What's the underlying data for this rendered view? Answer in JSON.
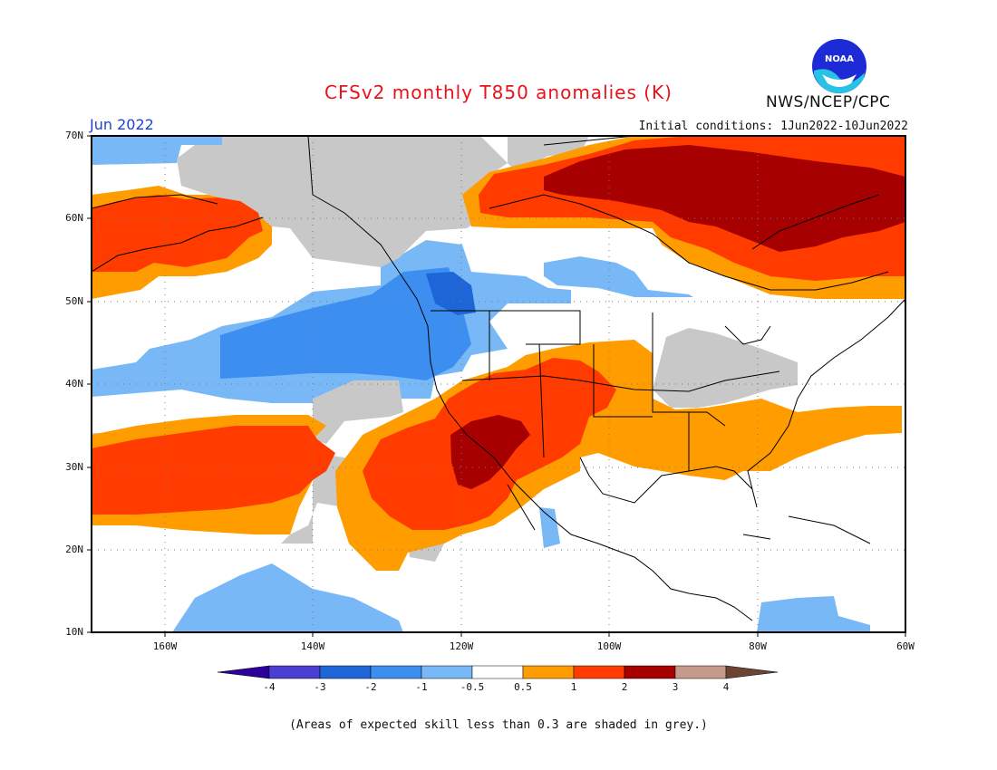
{
  "title": "CFSv2 monthly T850 anomalies (K)",
  "period_label": "Jun 2022",
  "initial_conditions": "Initial conditions: 1Jun2022-10Jun2022",
  "agency": "NWS/NCEP/CPC",
  "logo_text": "NOAA",
  "note": "(Areas of expected skill less than 0.3 are shaded in grey.)",
  "lat_labels": [
    "70N",
    "60N",
    "50N",
    "40N",
    "30N",
    "20N",
    "10N"
  ],
  "lon_labels": [
    "160W",
    "140W",
    "120W",
    "100W",
    "80W",
    "60W"
  ],
  "colorbar": {
    "labels": [
      "-4",
      "-3",
      "-2",
      "-1",
      "-0.5",
      "0.5",
      "1",
      "2",
      "3",
      "4"
    ],
    "colors": [
      "#2d0099",
      "#4a3fd0",
      "#1e66d8",
      "#3c8ef0",
      "#78b8f6",
      "#ffffff",
      "#ff9c00",
      "#ff3b00",
      "#a60000",
      "#c49a8a",
      "#6b4434"
    ]
  },
  "skill_color": "#c8c8c8"
}
